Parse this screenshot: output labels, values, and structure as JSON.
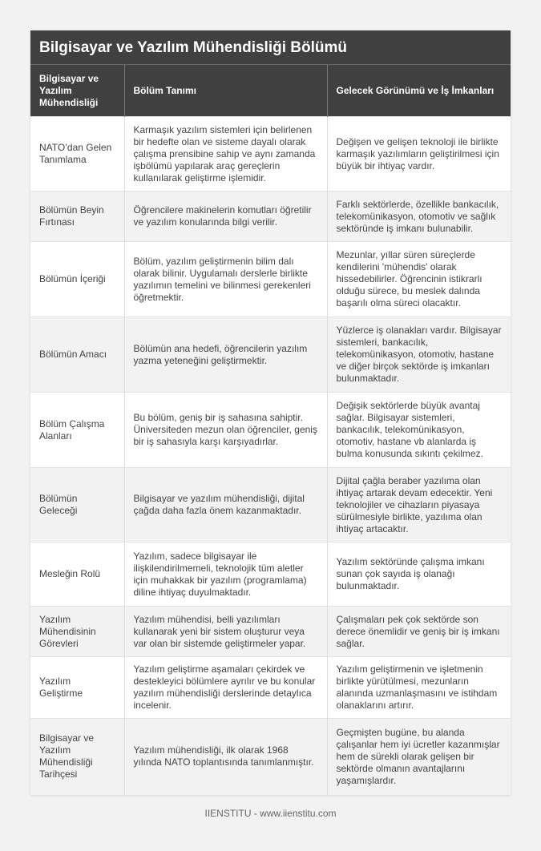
{
  "title": "Bilgisayar ve Yazılım Mühendisliği Bölümü",
  "headers": [
    "Bilgisayar ve Yazılım Mühendisliği",
    "Bölüm Tanımı",
    "Gelecek Görünümü ve İş İmkanları"
  ],
  "rows": [
    [
      "NATO’dan Gelen Tanımlama",
      "Karmaşık yazılım sistemleri için belirlenen bir hedefte olan ve sisteme dayalı olarak çalışma prensibine sahip ve aynı zamanda işbölümü yapılarak araç gereçlerin kullanılarak geliştirme işlemidir.",
      "Değişen ve gelişen teknoloji ile birlikte karmaşık yazılımların geliştirilmesi için büyük bir ihtiyaç vardır."
    ],
    [
      "Bölümün Beyin Fırtınası",
      "Öğrencilere makinelerin komutları öğretilir ve yazılım konularında bilgi verilir.",
      "Farklı sektörlerde, özellikle bankacılık, telekomünikasyon, otomotiv ve sağlık sektöründe iş imkanı bulunabilir."
    ],
    [
      "Bölümün İçeriği",
      "Bölüm, yazılım geliştirmenin bilim dalı olarak bilinir. Uygulamalı derslerle birlikte yazılımın temelini ve bilinmesi gerekenleri öğretmektir.",
      "Mezunlar, yıllar süren süreçlerde kendilerini 'mühendis' olarak hissedebilirler. Öğrencinin istikrarlı olduğu sürece, bu meslek dalında başarılı olma süreci olacaktır."
    ],
    [
      "Bölümün Amacı",
      "Bölümün ana hedefi, öğrencilerin yazılım yazma yeteneğini geliştirmektir.",
      "Yüzlerce iş olanakları vardır. Bilgisayar sistemleri, bankacılık, telekomünikasyon, otomotiv, hastane ve diğer birçok sektörde iş imkanları bulunmaktadır."
    ],
    [
      "Bölüm Çalışma Alanları",
      "Bu bölüm, geniş bir iş sahasına sahiptir. Üniversiteden mezun olan öğrenciler, geniş bir iş sahasıyla karşı karşıyadırlar.",
      "Değişik sektörlerde büyük avantaj sağlar. Bilgisayar sistemleri, bankacılık, telekomünikasyon, otomotiv, hastane vb alanlarda iş bulma konusunda sıkıntı çekilmez."
    ],
    [
      "Bölümün Geleceği",
      "Bilgisayar ve yazılım mühendisliği, dijital çağda daha fazla önem kazanmaktadır.",
      "Dijital çağla beraber yazılıma olan ihtiyaç artarak devam edecektir. Yeni teknolojiler ve cihazların piyasaya sürülmesiyle birlikte, yazılıma olan ihtiyaç artacaktır."
    ],
    [
      "Mesleğin Rolü",
      "Yazılım, sadece bilgisayar ile ilişkilendirilmemeli, teknolojik tüm aletler için muhakkak bir yazılım (programlama) diline ihtiyaç duyulmaktadır.",
      "Yazılım sektöründe çalışma imkanı sunan çok sayıda iş olanağı bulunmaktadır."
    ],
    [
      "Yazılım Mühendisinin Görevleri",
      "Yazılım mühendisi, belli yazılımları kullanarak yeni bir sistem oluşturur veya var olan bir sistemde geliştirmeler yapar.",
      "Çalışmaları pek çok sektörde son derece önemlidir ve geniş bir iş imkanı sağlar."
    ],
    [
      "Yazılım Geliştirme",
      "Yazılım geliştirme aşamaları çekirdek ve destekleyici bölümlere ayrılır ve bu konular yazılım mühendisliği derslerinde detaylıca incelenir.",
      "Yazılım geliştirmenin ve işletmenin birlikte yürütülmesi, mezunların alanında uzmanlaşmasını ve istihdam olanaklarını artırır."
    ],
    [
      "Bilgisayar ve Yazılım Mühendisliği Tarihçesi",
      "Yazılım mühendisliği, ilk olarak 1968 yılında NATO toplantısında tanımlanmıştır.",
      "Geçmişten bugüne, bu alanda çalışanlar hem iyi ücretler kazanmışlar hem de sürekli olarak gelişen bir sektörde olmanın avantajlarını yaşamışlardır."
    ]
  ],
  "footer": "IIENSTITU - www.iienstitu.com"
}
